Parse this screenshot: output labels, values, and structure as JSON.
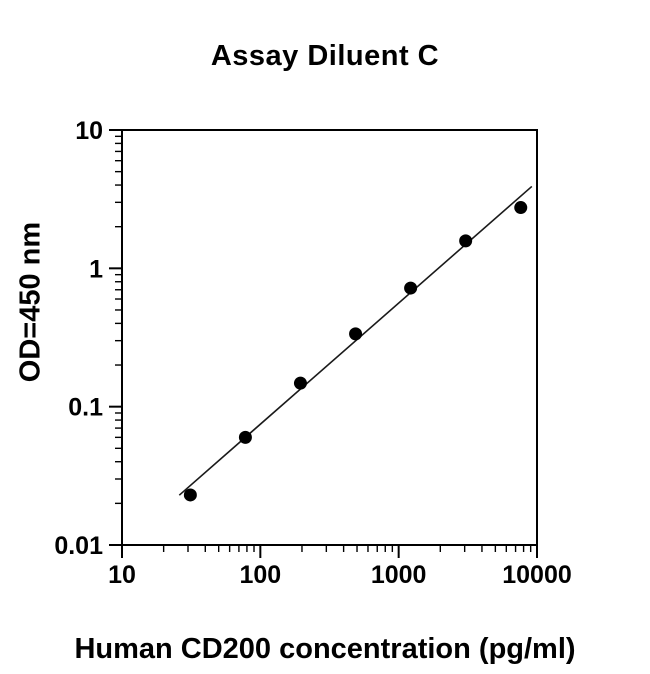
{
  "chart_data": {
    "type": "scatter",
    "title": "Assay Diluent C",
    "xlabel": "Human CD200 concentration (pg/ml)",
    "ylabel": "OD=450 nm",
    "x_scale": "log",
    "y_scale": "log",
    "xlim": [
      10,
      10000
    ],
    "ylim": [
      0.01,
      10
    ],
    "x_ticks": [
      {
        "value": 10,
        "label": "10"
      },
      {
        "value": 100,
        "label": "100"
      },
      {
        "value": 1000,
        "label": "1000"
      },
      {
        "value": 10000,
        "label": "10000"
      }
    ],
    "y_ticks": [
      {
        "value": 10,
        "label": "10"
      },
      {
        "value": 1,
        "label": "1"
      },
      {
        "value": 0.1,
        "label": "0.1"
      },
      {
        "value": 0.01,
        "label": "0.01"
      }
    ],
    "x": [
      31.2,
      78,
      195,
      488,
      1220,
      3050,
      7630
    ],
    "y": [
      0.023,
      0.06,
      0.148,
      0.336,
      0.72,
      1.58,
      2.75
    ],
    "trendline": "linear-fit-log-log",
    "marker": "filled-circle",
    "legend": "none",
    "grid": "off",
    "colors": {
      "points": "#000000",
      "line": "#1a1a1a",
      "axes": "#000000",
      "background": "#ffffff"
    }
  }
}
